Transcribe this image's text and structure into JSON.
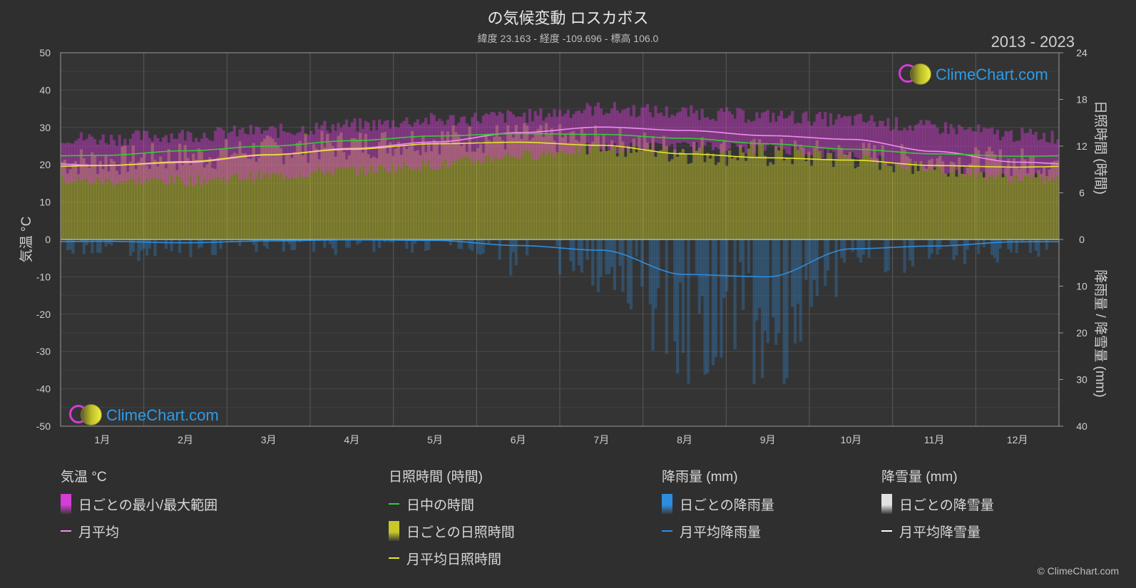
{
  "header": {
    "title": "の気候変動 ロスカボス",
    "subtitle": "緯度 23.163 - 経度 -109.696 - 標高 106.0",
    "years": "2013 - 2023",
    "copyright": "© ClimeChart.com"
  },
  "logo": {
    "text": "ClimeChart.com"
  },
  "chart_data": {
    "type": "line",
    "x_categories": [
      "1月",
      "2月",
      "3月",
      "4月",
      "5月",
      "6月",
      "7月",
      "8月",
      "9月",
      "10月",
      "11月",
      "12月"
    ],
    "axes": {
      "left": {
        "label": "気温 °C",
        "ticks": [
          50,
          40,
          30,
          20,
          10,
          0,
          -10,
          -20,
          -30,
          -40,
          -50
        ],
        "range": [
          -50,
          50
        ]
      },
      "right_top": {
        "label": "日照時間 (時間)",
        "ticks": [
          24,
          18,
          12,
          6,
          0
        ],
        "range": [
          0,
          24
        ]
      },
      "right_bottom": {
        "label": "降雨量 / 降雪量 (mm)",
        "ticks": [
          10,
          20,
          30,
          40
        ],
        "range": [
          0,
          40
        ]
      }
    },
    "grid": true,
    "series": [
      {
        "name": "日ごとの最小/最大範囲",
        "kind": "band",
        "color": "#d63cd6",
        "low": [
          15.5,
          15.8,
          17,
          18.5,
          20,
          22.5,
          24.5,
          24.8,
          24.5,
          22.5,
          19,
          16.5
        ],
        "high": [
          27,
          28,
          29,
          30.5,
          32,
          33,
          35,
          34,
          33,
          32,
          30,
          28
        ]
      },
      {
        "name": "月平均",
        "kind": "line",
        "color": "#f08cf0",
        "values": [
          19.8,
          20.6,
          22.6,
          24.4,
          26.1,
          28.6,
          30.1,
          29.2,
          27.8,
          26.8,
          23.6,
          20.7
        ]
      },
      {
        "name": "日中の時間",
        "kind": "line",
        "axis": "right_top",
        "color": "#33cc33",
        "values": [
          10.8,
          11.4,
          12.0,
          12.7,
          13.3,
          13.6,
          13.5,
          13.0,
          12.3,
          11.6,
          11.0,
          10.7
        ]
      },
      {
        "name": "月平均日照時間",
        "kind": "line",
        "axis": "right_top",
        "color": "#e6e62e",
        "values": [
          9.5,
          10.0,
          10.9,
          11.6,
          12.3,
          12.5,
          12.1,
          11.0,
          10.5,
          10.2,
          9.5,
          9.3
        ]
      },
      {
        "name": "月平均降雨量",
        "kind": "line",
        "axis": "right_bottom",
        "color": "#2d8ee0",
        "values": [
          0.4,
          0.7,
          0.3,
          0.1,
          0.2,
          1.3,
          2.3,
          7.5,
          8.0,
          2.0,
          1.4,
          0.5
        ]
      }
    ]
  },
  "legend": {
    "groups": [
      {
        "title": "気温 °C",
        "items": [
          {
            "label": "日ごとの最小/最大範囲",
            "swatch": "box",
            "color": "#d63cd6"
          },
          {
            "label": "月平均",
            "swatch": "line",
            "color": "#f08cf0"
          }
        ]
      },
      {
        "title": "日照時間 (時間)",
        "items": [
          {
            "label": "日中の時間",
            "swatch": "line",
            "color": "#33cc33"
          },
          {
            "label": "日ごとの日照時間",
            "swatch": "box",
            "color": "#c8c82a"
          },
          {
            "label": "月平均日照時間",
            "swatch": "line",
            "color": "#e6e62e"
          }
        ]
      },
      {
        "title": "降雨量 (mm)",
        "items": [
          {
            "label": "日ごとの降雨量",
            "swatch": "box",
            "color": "#2d8ee0"
          },
          {
            "label": "月平均降雨量",
            "swatch": "line",
            "color": "#2d8ee0"
          }
        ]
      },
      {
        "title": "降雪量 (mm)",
        "items": [
          {
            "label": "日ごとの降雪量",
            "swatch": "box",
            "color": "#e0e0e0"
          },
          {
            "label": "月平均降雪量",
            "swatch": "line",
            "color": "#ffffff"
          }
        ]
      }
    ]
  }
}
